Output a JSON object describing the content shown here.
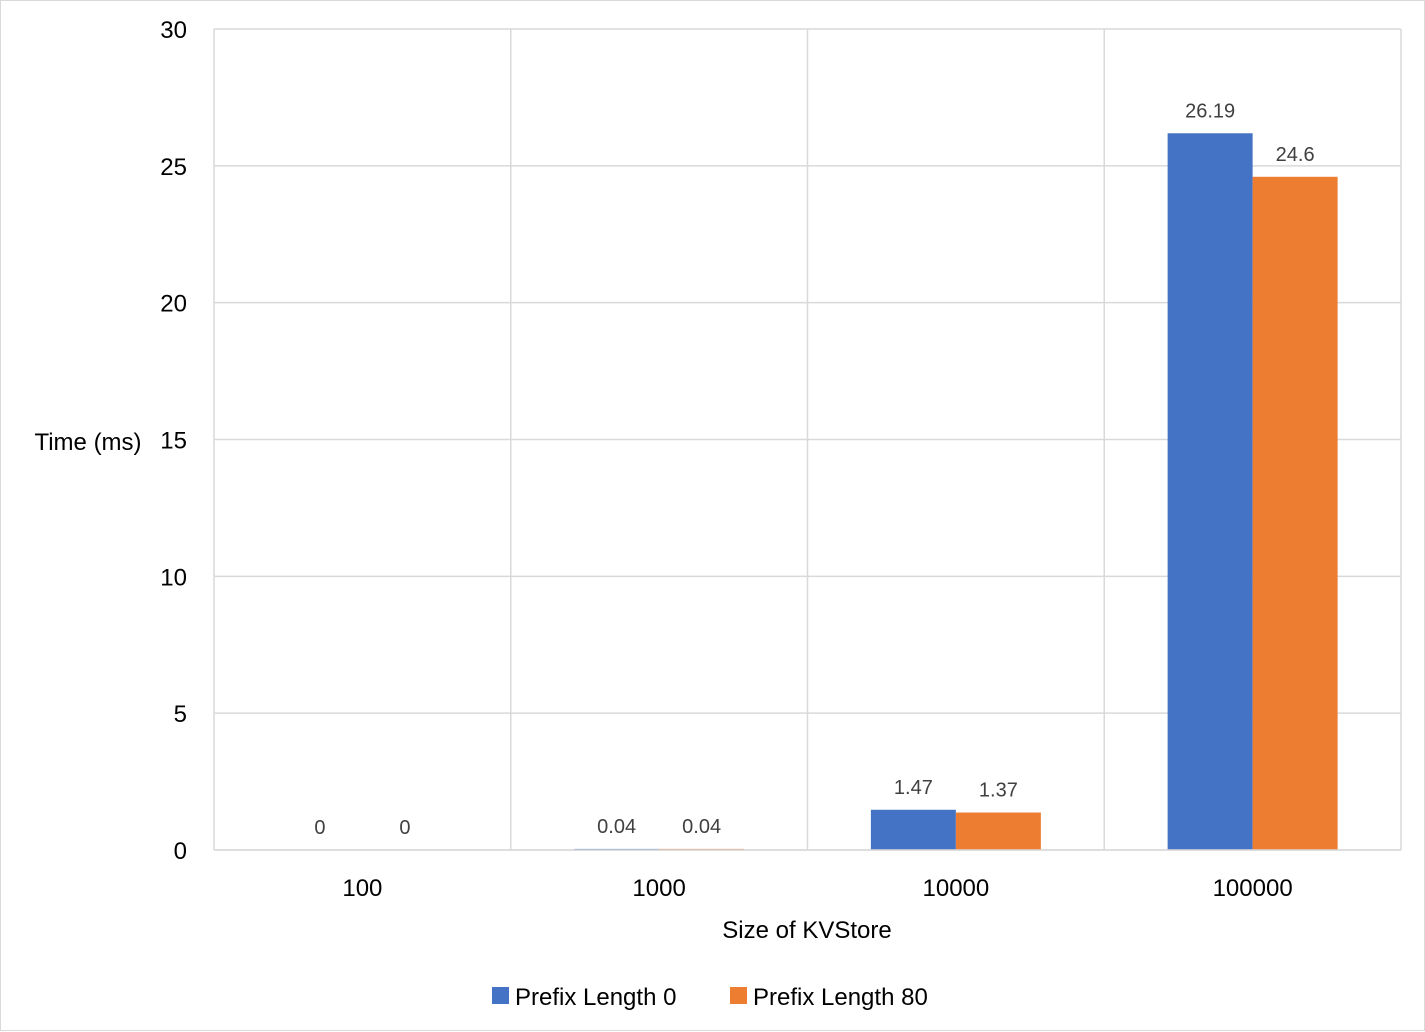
{
  "chart_data": {
    "type": "bar",
    "title": "",
    "xlabel": "Size of KVStore",
    "ylabel": "Time (ms)",
    "categories": [
      "100",
      "1000",
      "10000",
      "100000"
    ],
    "ylim": [
      0,
      30
    ],
    "yticks": [
      0,
      5,
      10,
      15,
      20,
      25,
      30
    ],
    "grid": true,
    "legend_position": "bottom",
    "series": [
      {
        "name": "Prefix Length 0",
        "color": "#4472c4",
        "values": [
          0,
          0.04,
          1.47,
          26.19
        ],
        "labels": [
          "0",
          "0.04",
          "1.47",
          "26.19"
        ]
      },
      {
        "name": "Prefix Length 80",
        "color": "#ed7d31",
        "values": [
          0,
          0.04,
          1.37,
          24.6
        ],
        "labels": [
          "0",
          "0.04",
          "1.37",
          "24.6"
        ]
      }
    ]
  }
}
